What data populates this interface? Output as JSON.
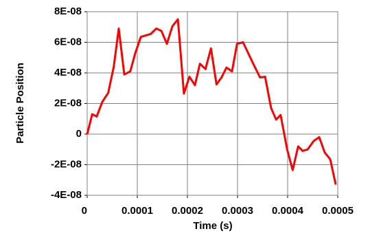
{
  "chart_data": {
    "type": "line",
    "x_label": "Time (s)",
    "y_label": "Particle Position",
    "x": [
      0,
      1e-05,
      1.9e-05,
      3e-05,
      4.2e-05,
      5.3e-05,
      6.3e-05,
      7.4e-05,
      8.6e-05,
      9.6e-05,
      0.000107,
      0.000127,
      0.000138,
      0.000148,
      0.000159,
      0.00017,
      0.000181,
      0.000193,
      0.000204,
      0.000215,
      0.000225,
      0.000236,
      0.000247,
      0.000258,
      0.000268,
      0.000278,
      0.000289,
      0.000299,
      0.000311,
      0.000332,
      0.000345,
      0.000355,
      0.000367,
      0.000377,
      0.000386,
      0.000399,
      0.00041,
      0.000421,
      0.00043,
      0.00044,
      0.000452,
      0.000463,
      0.000474,
      0.000485,
      0.000496
    ],
    "series": [
      {
        "color": "#ff0000",
        "values": [
          0,
          1.3e-08,
          1.15e-08,
          2.1e-08,
          2.7e-08,
          4.4e-08,
          6.9e-08,
          3.9e-08,
          4.1e-08,
          5.3e-08,
          6.35e-08,
          6.55e-08,
          6.9e-08,
          6.75e-08,
          5.9e-08,
          7.05e-08,
          7.5e-08,
          2.65e-08,
          3.75e-08,
          3.2e-08,
          4.6e-08,
          4.25e-08,
          5.6e-08,
          3.25e-08,
          3.7e-08,
          4.35e-08,
          4.1e-08,
          5.9e-08,
          6e-08,
          4.55e-08,
          3.7e-08,
          3.75e-08,
          1.7e-08,
          9.5e-09,
          1.25e-08,
          -1e-08,
          -2.35e-08,
          -8e-09,
          -1.1e-08,
          -1e-08,
          -4.5e-09,
          -2e-09,
          -1.2e-08,
          -1.65e-08,
          -3.3e-08
        ]
      }
    ],
    "xlim": [
      0,
      0.0005
    ],
    "xticks": [
      0,
      0.0001,
      0.0002,
      0.0003,
      0.0004,
      0.0005
    ],
    "ylim": [
      -4e-08,
      8e-08
    ],
    "yticks": [
      {
        "value": -4e-08,
        "label": "-4E-08"
      },
      {
        "value": -2e-08,
        "label": "-2E-08"
      },
      0,
      {
        "value": 2e-08,
        "label": "2E-08"
      },
      {
        "value": 4e-08,
        "label": "4E-08"
      },
      {
        "value": 6e-08,
        "label": "6E-08"
      },
      {
        "value": 8e-08,
        "label": "8E-08"
      }
    ],
    "grid": true
  }
}
